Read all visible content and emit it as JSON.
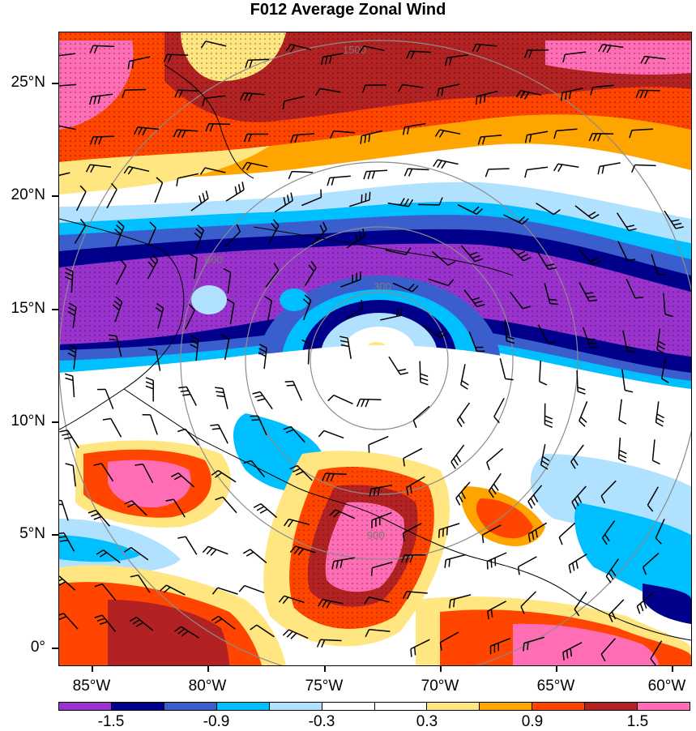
{
  "title": "F012 Average Zonal Wind",
  "map": {
    "lat_labels": [
      "25°N",
      "20°N",
      "15°N",
      "10°N",
      "5°N",
      "0°"
    ],
    "lon_labels": [
      "85°W",
      "80°W",
      "75°W",
      "70°W",
      "65°W",
      "60°W"
    ],
    "lat_range": [
      -0.8,
      27.2
    ],
    "lon_range": [
      -87.0,
      -59.6
    ],
    "range_ring_labels": [
      "300",
      "600",
      "900",
      "1500"
    ],
    "storm_center": {
      "lon": -74.0,
      "lat": 12.5
    }
  },
  "colorbar": {
    "colors": [
      "#9a32cd",
      "#00008b",
      "#3a5fcd",
      "#00bfff",
      "#b0e2ff",
      "#ffffff",
      "#ffffff",
      "#ffe680",
      "#ffa500",
      "#ff4500",
      "#b22222",
      "#ff6eb4"
    ],
    "labels": [
      "-1.5",
      "-0.9",
      "-0.3",
      "0.3",
      "0.9",
      "1.5"
    ]
  }
}
